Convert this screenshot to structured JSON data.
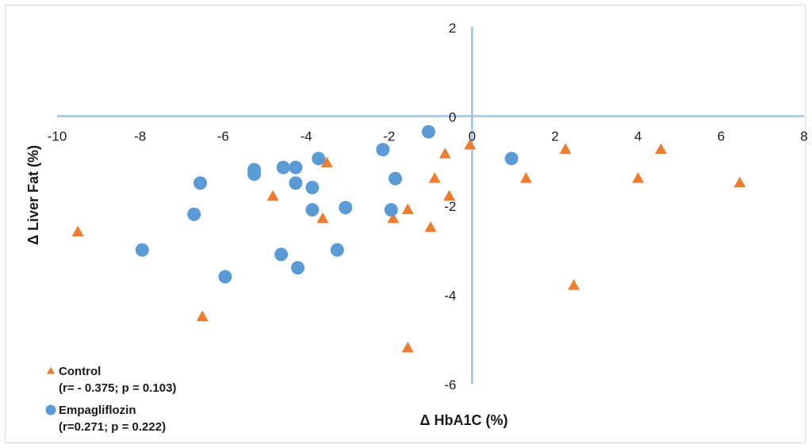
{
  "colors": {
    "control": "#ED7D31",
    "empagliflozin": "#5B9BD5",
    "axis": "#9DC3E6"
  },
  "chart_data": {
    "type": "scatter",
    "xlabel": "Δ HbA1C  (%)",
    "ylabel": "Δ Liver Fat (%)",
    "xlim": [
      -10,
      8
    ],
    "ylim": [
      -6,
      2
    ],
    "x_ticks": [
      -10,
      -8,
      -6,
      -4,
      -2,
      0,
      2,
      4,
      6,
      8
    ],
    "y_ticks": [
      2,
      0,
      -2,
      -4,
      -6
    ],
    "grid": false,
    "legend_position": "bottom-left",
    "series": [
      {
        "name": "Control",
        "stat": "(r= - 0.375;  p = 0.103)",
        "marker": "triangle",
        "color": "#ED7D31",
        "points": [
          [
            -9.5,
            -2.6
          ],
          [
            -6.5,
            -4.5
          ],
          [
            -4.8,
            -1.8
          ],
          [
            -3.5,
            -1.05
          ],
          [
            -3.6,
            -2.3
          ],
          [
            -1.9,
            -2.3
          ],
          [
            -1.55,
            -2.1
          ],
          [
            -1.55,
            -5.2
          ],
          [
            -1.0,
            -2.5
          ],
          [
            -0.9,
            -1.4
          ],
          [
            -0.65,
            -0.85
          ],
          [
            -0.55,
            -1.8
          ],
          [
            -0.05,
            -0.65
          ],
          [
            1.3,
            -1.4
          ],
          [
            2.25,
            -0.75
          ],
          [
            2.45,
            -3.8
          ],
          [
            4.0,
            -1.4
          ],
          [
            4.55,
            -0.75
          ],
          [
            6.45,
            -1.5
          ]
        ]
      },
      {
        "name": "Empagliflozin",
        "stat": "(r=0.271;  p = 0.222)",
        "marker": "circle",
        "color": "#5B9BD5",
        "points": [
          [
            -7.95,
            -3.0
          ],
          [
            -6.7,
            -2.2
          ],
          [
            -6.55,
            -1.5
          ],
          [
            -5.95,
            -3.6
          ],
          [
            -5.25,
            -1.2
          ],
          [
            -5.25,
            -1.3
          ],
          [
            -4.6,
            -3.1
          ],
          [
            -4.55,
            -1.15
          ],
          [
            -4.25,
            -1.5
          ],
          [
            -4.25,
            -1.15
          ],
          [
            -4.2,
            -3.4
          ],
          [
            -3.85,
            -1.6
          ],
          [
            -3.85,
            -2.1
          ],
          [
            -3.7,
            -0.95
          ],
          [
            -3.25,
            -3.0
          ],
          [
            -3.05,
            -2.05
          ],
          [
            -2.15,
            -0.75
          ],
          [
            -1.95,
            -2.1
          ],
          [
            -1.85,
            -1.4
          ],
          [
            -1.05,
            -0.35
          ],
          [
            0.95,
            -0.95
          ]
        ]
      }
    ]
  }
}
